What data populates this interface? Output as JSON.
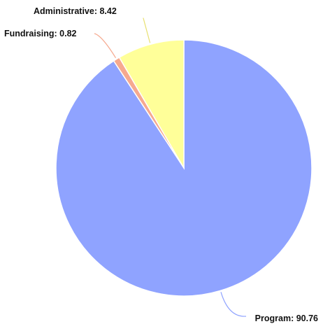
{
  "chart_data": {
    "type": "pie",
    "title": "",
    "start_angle": 0,
    "direction": "clockwise",
    "slices": [
      {
        "label": "Program",
        "value": 90.76,
        "color": "#8fa3ff",
        "leader_color": "#8fa3ff",
        "text": "Program: 90.76"
      },
      {
        "label": "Fundraising",
        "value": 0.82,
        "color": "#f6a98f",
        "leader_color": "#f6a98f",
        "text": "Fundraising: 0.82"
      },
      {
        "label": "Administrative",
        "value": 8.42,
        "color": "#ffff99",
        "leader_color": "#e8e070",
        "text": "Administrative: 8.42"
      }
    ]
  }
}
